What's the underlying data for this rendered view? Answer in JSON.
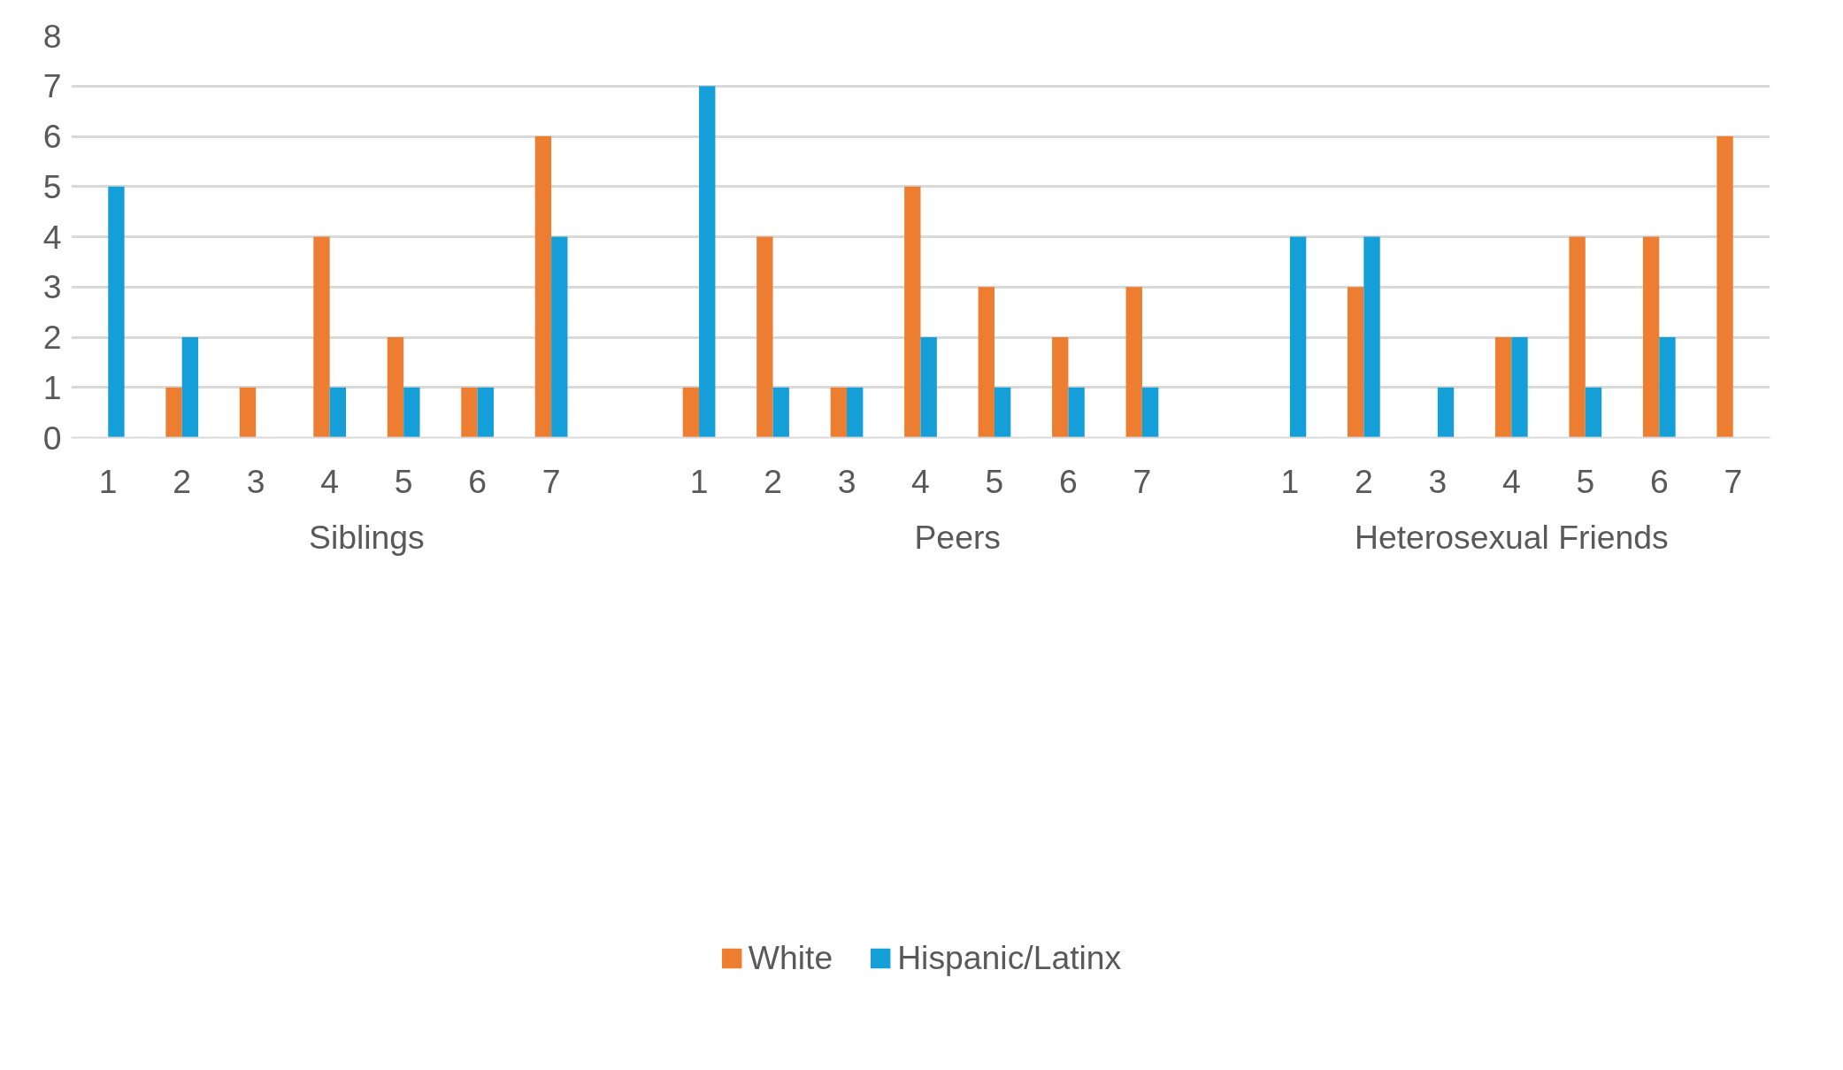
{
  "chart_data": {
    "type": "bar",
    "categories": [
      "1",
      "2",
      "3",
      "4",
      "5",
      "6",
      "7",
      null,
      "1",
      "2",
      "3",
      "4",
      "5",
      "6",
      "7",
      null,
      "1",
      "2",
      "3",
      "4",
      "5",
      "6",
      "7"
    ],
    "series": [
      {
        "name": "White",
        "color": "#ed7d31",
        "values": [
          null,
          1,
          1,
          4,
          2,
          1,
          6,
          null,
          1,
          4,
          1,
          5,
          3,
          2,
          3,
          null,
          null,
          3,
          null,
          2,
          4,
          4,
          6
        ]
      },
      {
        "name": "Hispanic/Latinx",
        "color": "#159fd8",
        "values": [
          5,
          2,
          null,
          1,
          1,
          1,
          4,
          null,
          7,
          1,
          1,
          2,
          1,
          1,
          1,
          null,
          4,
          4,
          1,
          2,
          1,
          2,
          null
        ]
      }
    ],
    "annotations": [
      "Siblings",
      "Peers",
      "Heterosexual Friends"
    ],
    "ylim": [
      0,
      8
    ],
    "yticks": [
      0,
      1,
      2,
      3,
      4,
      5,
      6,
      7,
      8
    ],
    "grid": "y",
    "legend": "bottom"
  }
}
